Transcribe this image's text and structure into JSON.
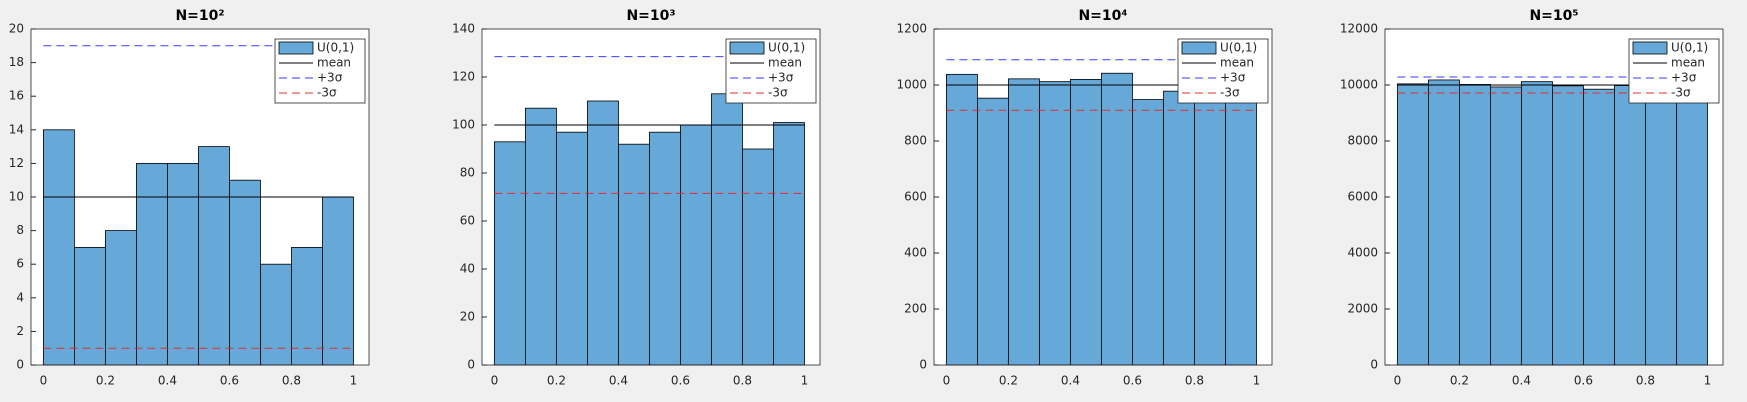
{
  "chart_data": [
    {
      "type": "histogram",
      "title": "N=10²",
      "bins": [
        0,
        0.1,
        0.2,
        0.3,
        0.4,
        0.5,
        0.6,
        0.7,
        0.8,
        0.9,
        1
      ],
      "series": [
        {
          "name": "U(0,1)",
          "color": "#66a9d8",
          "values": [
            14,
            7,
            8,
            12,
            12,
            13,
            11,
            6,
            7,
            10
          ]
        }
      ],
      "reference_lines": [
        {
          "name": "mean",
          "color": "#000000",
          "style": "solid",
          "value": 10
        },
        {
          "name": "+3σ",
          "color": "#3a3aff",
          "style": "dashed",
          "value": 19
        },
        {
          "name": "-3σ",
          "color": "#e03030",
          "style": "dashed",
          "value": 1
        }
      ],
      "xlim": [
        -0.04,
        1.05
      ],
      "xticks": [
        0,
        0.2,
        0.4,
        0.6,
        0.8,
        1
      ],
      "ylim": [
        0,
        20
      ],
      "yticks": [
        0,
        2,
        4,
        6,
        8,
        10,
        12,
        14,
        16,
        18,
        20
      ],
      "grid": false,
      "legend": "upper right"
    },
    {
      "type": "histogram",
      "title": "N=10³",
      "bins": [
        0,
        0.1,
        0.2,
        0.3,
        0.4,
        0.5,
        0.6,
        0.7,
        0.8,
        0.9,
        1
      ],
      "series": [
        {
          "name": "U(0,1)",
          "color": "#66a9d8",
          "values": [
            93,
            107,
            97,
            110,
            92,
            97,
            100,
            113,
            90,
            101
          ]
        }
      ],
      "reference_lines": [
        {
          "name": "mean",
          "color": "#000000",
          "style": "solid",
          "value": 100
        },
        {
          "name": "+3σ",
          "color": "#3a3aff",
          "style": "dashed",
          "value": 128.5
        },
        {
          "name": "-3σ",
          "color": "#e03030",
          "style": "dashed",
          "value": 71.5
        }
      ],
      "xlim": [
        -0.04,
        1.05
      ],
      "xticks": [
        0,
        0.2,
        0.4,
        0.6,
        0.8,
        1
      ],
      "ylim": [
        0,
        140
      ],
      "yticks": [
        0,
        20,
        40,
        60,
        80,
        100,
        120,
        140
      ],
      "grid": false,
      "legend": "upper right"
    },
    {
      "type": "histogram",
      "title": "N=10⁴",
      "bins": [
        0,
        0.1,
        0.2,
        0.3,
        0.4,
        0.5,
        0.6,
        0.7,
        0.8,
        0.9,
        1
      ],
      "series": [
        {
          "name": "U(0,1)",
          "color": "#66a9d8",
          "values": [
            1038,
            953,
            1022,
            1012,
            1020,
            1042,
            948,
            978,
            990,
            997
          ]
        }
      ],
      "reference_lines": [
        {
          "name": "mean",
          "color": "#000000",
          "style": "solid",
          "value": 1000
        },
        {
          "name": "+3σ",
          "color": "#3a3aff",
          "style": "dashed",
          "value": 1090
        },
        {
          "name": "-3σ",
          "color": "#e03030",
          "style": "dashed",
          "value": 910
        }
      ],
      "xlim": [
        -0.04,
        1.05
      ],
      "xticks": [
        0,
        0.2,
        0.4,
        0.6,
        0.8,
        1
      ],
      "ylim": [
        0,
        1200
      ],
      "yticks": [
        0,
        200,
        400,
        600,
        800,
        1000,
        1200
      ],
      "grid": false,
      "legend": "upper right"
    },
    {
      "type": "histogram",
      "title": "N=10⁵",
      "bins": [
        0,
        0.1,
        0.2,
        0.3,
        0.4,
        0.5,
        0.6,
        0.7,
        0.8,
        0.9,
        1
      ],
      "series": [
        {
          "name": "U(0,1)",
          "color": "#66a9d8",
          "values": [
            10040,
            10180,
            10020,
            9930,
            10120,
            9970,
            9850,
            9980,
            9960,
            9950
          ]
        }
      ],
      "reference_lines": [
        {
          "name": "mean",
          "color": "#000000",
          "style": "solid",
          "value": 10000
        },
        {
          "name": "+3σ",
          "color": "#3a3aff",
          "style": "dashed",
          "value": 10285
        },
        {
          "name": "-3σ",
          "color": "#e03030",
          "style": "dashed",
          "value": 9715
        }
      ],
      "xlim": [
        -0.04,
        1.05
      ],
      "xticks": [
        0,
        0.2,
        0.4,
        0.6,
        0.8,
        1
      ],
      "ylim": [
        0,
        12000
      ],
      "yticks": [
        0,
        2000,
        4000,
        6000,
        8000,
        10000,
        12000
      ],
      "grid": false,
      "legend": "upper right"
    }
  ]
}
